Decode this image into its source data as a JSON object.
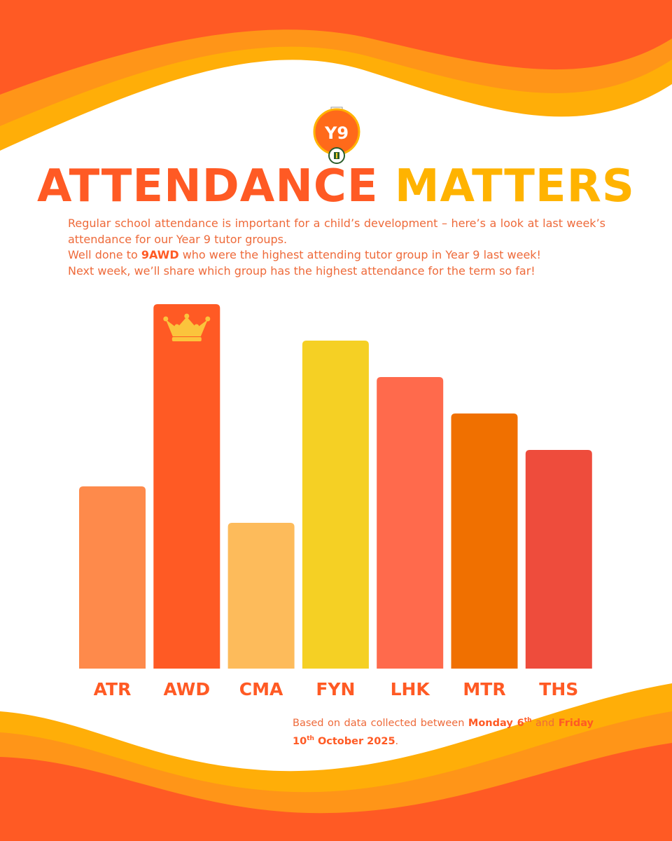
{
  "logo": {
    "text": "Y9"
  },
  "header": {
    "title_part1": "ATTENDANCE",
    "title_part2": "MATTERS"
  },
  "intro": {
    "para1": "Regular school attendance is important for a child’s development – here’s a look at last week’s attendance for our Year 9 tutor groups.",
    "para2_before": "Well done to ",
    "para2_bold": "9AWD",
    "para2_after": " who were the highest attending tutor group in Year 9 last week!",
    "para3": "Next week, we’ll share which group has the highest attendance for the term so far!"
  },
  "footnote": {
    "before": "Based on data collected between ",
    "date1_bold": "Monday 6",
    "date1_sup": "th",
    "mid": " and ",
    "date2_bold_a": "Friday 10",
    "date2_sup": "th",
    "date2_bold_b": " October 2025",
    "end": "."
  },
  "chart_data": {
    "type": "bar",
    "categories": [
      "ATR",
      "AWD",
      "CMA",
      "FYN",
      "LHK",
      "MTR",
      "THS"
    ],
    "values": [
      50,
      100,
      40,
      90,
      80,
      70,
      60
    ],
    "colors": [
      "#fe8a4b",
      "#ff5a24",
      "#fdbb5b",
      "#f5d024",
      "#ff6a4c",
      "#f07000",
      "#ee4c3c"
    ],
    "highlight": {
      "category": "AWD",
      "icon": "crown-icon"
    },
    "ylim": [
      0,
      100
    ],
    "label_color": "#ff5a24",
    "grid": false,
    "legend": "none"
  }
}
